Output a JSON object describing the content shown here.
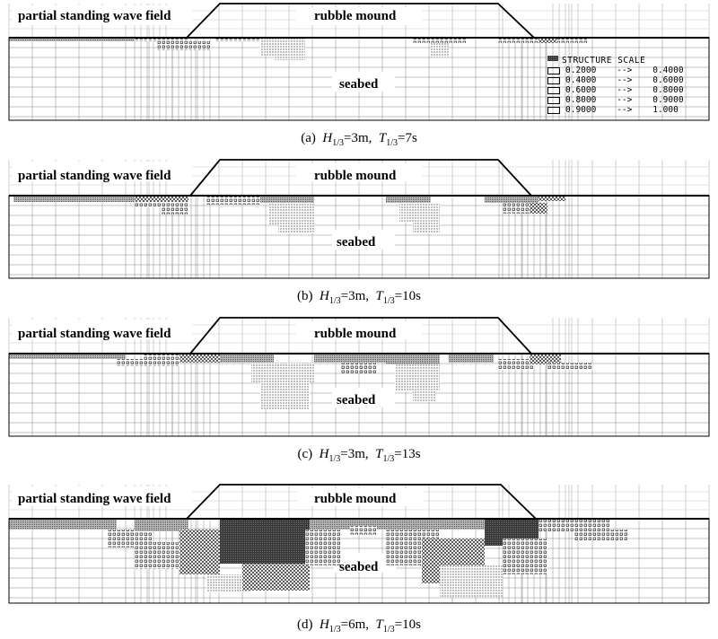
{
  "panels": [
    {
      "id": "a",
      "wave_label": "partial standing wave field",
      "structure_label": "rubble mound",
      "seabed_label": "seabed",
      "caption": {
        "prefix": "(a)",
        "h_sub": "1/3",
        "h_val": "=3m,",
        "t_sub": "1/3",
        "t_val": "=7s"
      },
      "show_legend": true
    },
    {
      "id": "b",
      "wave_label": "partial standing wave field",
      "structure_label": "rubble mound",
      "seabed_label": "seabed",
      "caption": {
        "prefix": "(b)",
        "h_sub": "1/3",
        "h_val": "=3m,",
        "t_sub": "1/3",
        "t_val": "=10s"
      },
      "show_legend": false
    },
    {
      "id": "c",
      "wave_label": "partial standing wave field",
      "structure_label": "rubble mound",
      "seabed_label": "seabed",
      "caption": {
        "prefix": "(c)",
        "h_sub": "1/3",
        "h_val": "=3m,",
        "t_sub": "1/3",
        "t_val": "=13s"
      },
      "show_legend": false
    },
    {
      "id": "d",
      "wave_label": "partial standing wave field",
      "structure_label": "rubble mound",
      "seabed_label": "seabed",
      "caption": {
        "prefix": "(d)",
        "h_sub": "1/3",
        "h_val": "=6m,",
        "t_sub": "1/3",
        "t_val": "=10s"
      },
      "show_legend": false
    }
  ],
  "caption_symbols": {
    "h": "H",
    "t": "T"
  },
  "legend": {
    "title": "STRUCTURE SCALE",
    "rows": [
      {
        "from": "0.2000",
        "arrow": "-->",
        "to": "0.4000",
        "pattern": "p1"
      },
      {
        "from": "0.4000",
        "arrow": "-->",
        "to": "0.6000",
        "pattern": "p2"
      },
      {
        "from": "0.6000",
        "arrow": "-->",
        "to": "0.8000",
        "pattern": "p3"
      },
      {
        "from": "0.8000",
        "arrow": "-->",
        "to": "0.9000",
        "pattern": "p4"
      },
      {
        "from": "0.9000",
        "arrow": "-->",
        "to": "1.000",
        "pattern": "p5"
      }
    ]
  },
  "colors": {
    "line": "#000000",
    "grid": "#888888",
    "background": "#ffffff"
  }
}
